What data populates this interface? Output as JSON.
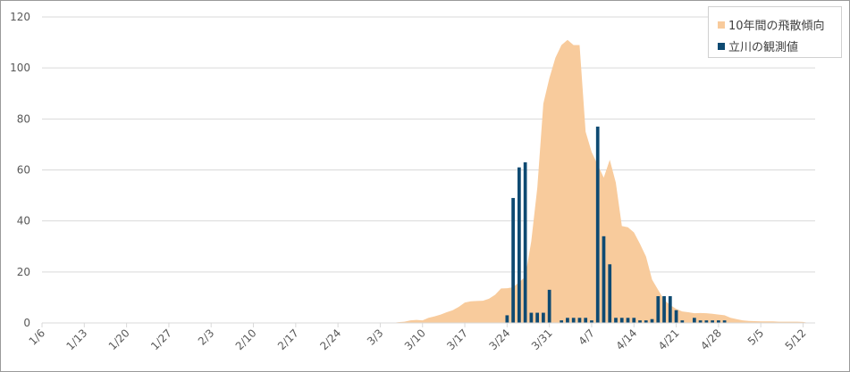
{
  "chart_data": {
    "type": "bar+area",
    "ylim": [
      0,
      120
    ],
    "yticks": [
      0,
      20,
      40,
      60,
      80,
      100,
      120
    ],
    "x_start": "1/6",
    "x_end": "5/14",
    "xtick_labels": [
      "1/6",
      "1/13",
      "1/20",
      "1/27",
      "2/3",
      "2/10",
      "2/17",
      "2/24",
      "3/3",
      "3/10",
      "3/17",
      "3/24",
      "3/31",
      "4/7",
      "4/14",
      "4/21",
      "4/28",
      "5/5",
      "5/12"
    ],
    "grid": true,
    "legend_position": "top-right",
    "series": [
      {
        "name": "10年間の飛散傾向",
        "type": "area",
        "color": "#f8cb9c",
        "points": [
          [
            "3/5",
            0
          ],
          [
            "3/6",
            0.3
          ],
          [
            "3/7",
            0.5
          ],
          [
            "3/8",
            1
          ],
          [
            "3/9",
            1.2
          ],
          [
            "3/10",
            1
          ],
          [
            "3/11",
            2
          ],
          [
            "3/12",
            2.6
          ],
          [
            "3/13",
            3.3
          ],
          [
            "3/14",
            4.2
          ],
          [
            "3/15",
            5
          ],
          [
            "3/16",
            6.3
          ],
          [
            "3/17",
            8
          ],
          [
            "3/18",
            8.5
          ],
          [
            "3/19",
            8.6
          ],
          [
            "3/20",
            8.7
          ],
          [
            "3/21",
            9.5
          ],
          [
            "3/22",
            11
          ],
          [
            "3/23",
            13.5
          ],
          [
            "3/24",
            13.6
          ],
          [
            "3/25",
            14
          ],
          [
            "3/26",
            16
          ],
          [
            "3/27",
            18
          ],
          [
            "3/28",
            32
          ],
          [
            "3/29",
            53
          ],
          [
            "3/30",
            86
          ],
          [
            "3/31",
            96
          ],
          [
            "4/1",
            104
          ],
          [
            "4/2",
            109
          ],
          [
            "4/3",
            111
          ],
          [
            "4/4",
            109
          ],
          [
            "4/5",
            109
          ],
          [
            "4/6",
            75
          ],
          [
            "4/7",
            67
          ],
          [
            "4/8",
            62
          ],
          [
            "4/9",
            57
          ],
          [
            "4/10",
            64
          ],
          [
            "4/11",
            55
          ],
          [
            "4/12",
            38
          ],
          [
            "4/13",
            37.5
          ],
          [
            "4/14",
            35.5
          ],
          [
            "4/15",
            31
          ],
          [
            "4/16",
            26
          ],
          [
            "4/17",
            17
          ],
          [
            "4/18",
            13
          ],
          [
            "4/19",
            9
          ],
          [
            "4/20",
            7
          ],
          [
            "4/21",
            5.5
          ],
          [
            "4/22",
            4.5
          ],
          [
            "4/23",
            4.2
          ],
          [
            "4/24",
            3.8
          ],
          [
            "4/25",
            3.9
          ],
          [
            "4/26",
            3.8
          ],
          [
            "4/27",
            3.6
          ],
          [
            "4/28",
            3.3
          ],
          [
            "4/29",
            3
          ],
          [
            "4/30",
            2
          ],
          [
            "5/1",
            1.5
          ],
          [
            "5/2",
            1
          ],
          [
            "5/3",
            0.8
          ],
          [
            "5/4",
            0.7
          ],
          [
            "5/5",
            0.6
          ],
          [
            "5/6",
            0.6
          ],
          [
            "5/7",
            0.6
          ],
          [
            "5/8",
            0.5
          ],
          [
            "5/9",
            0.5
          ],
          [
            "5/10",
            0.5
          ],
          [
            "5/11",
            0.5
          ],
          [
            "5/12",
            0.4
          ],
          [
            "5/13",
            0
          ]
        ]
      },
      {
        "name": "立川の観測値",
        "type": "bar",
        "color": "#0e4a72",
        "points": [
          [
            "3/24",
            3
          ],
          [
            "3/25",
            49
          ],
          [
            "3/26",
            61
          ],
          [
            "3/27",
            63
          ],
          [
            "3/28",
            4
          ],
          [
            "3/29",
            4
          ],
          [
            "3/30",
            4
          ],
          [
            "3/31",
            13
          ],
          [
            "4/1",
            0
          ],
          [
            "4/2",
            1
          ],
          [
            "4/3",
            2
          ],
          [
            "4/4",
            2
          ],
          [
            "4/5",
            2
          ],
          [
            "4/6",
            2
          ],
          [
            "4/7",
            1
          ],
          [
            "4/8",
            77
          ],
          [
            "4/9",
            34
          ],
          [
            "4/10",
            23
          ],
          [
            "4/11",
            2
          ],
          [
            "4/12",
            2
          ],
          [
            "4/13",
            2
          ],
          [
            "4/14",
            2
          ],
          [
            "4/15",
            1
          ],
          [
            "4/16",
            1
          ],
          [
            "4/17",
            1.5
          ],
          [
            "4/18",
            10.5
          ],
          [
            "4/19",
            10.5
          ],
          [
            "4/20",
            10.5
          ],
          [
            "4/21",
            5
          ],
          [
            "4/22",
            1
          ],
          [
            "4/23",
            0
          ],
          [
            "4/24",
            2
          ],
          [
            "4/25",
            1
          ],
          [
            "4/26",
            1
          ],
          [
            "4/27",
            1
          ],
          [
            "4/28",
            1
          ],
          [
            "4/29",
            1
          ]
        ]
      }
    ]
  },
  "legend": {
    "area_label": "10年間の飛散傾向",
    "bar_label": "立川の観測値"
  }
}
